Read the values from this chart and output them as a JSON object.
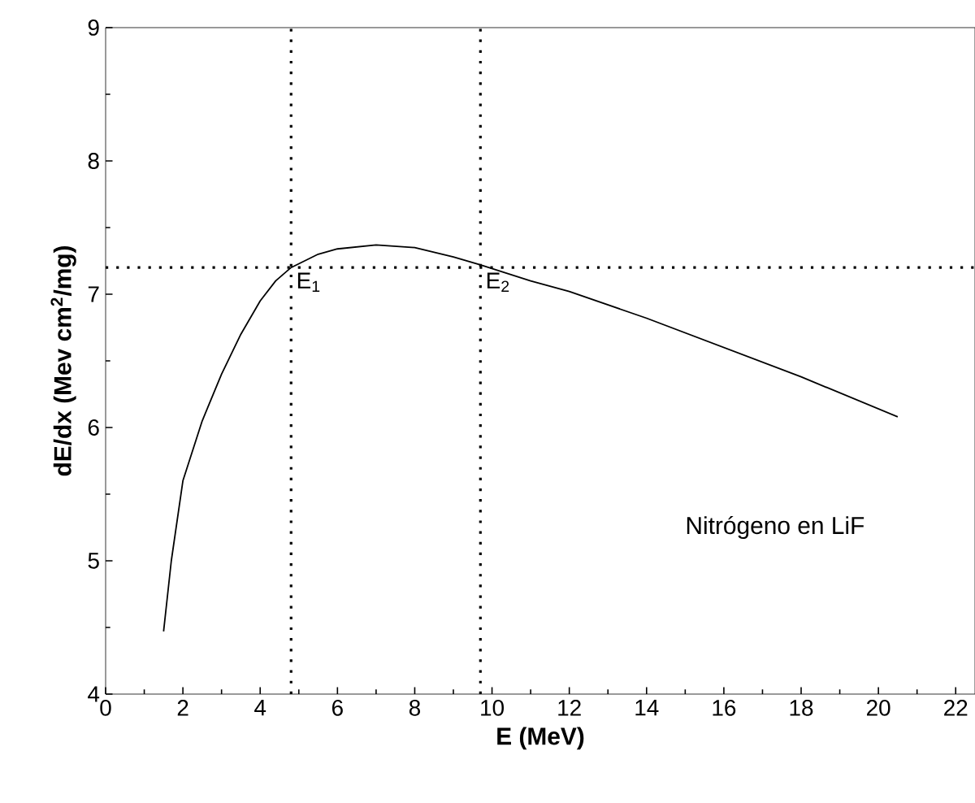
{
  "chart_data": {
    "type": "line",
    "xlabel": "E (MeV)",
    "ylabel": "dE/dx (Mev cm$^{2}$/mg)",
    "xlim": [
      0,
      22.5
    ],
    "ylim": [
      4,
      9
    ],
    "xticks": [
      0,
      2,
      4,
      6,
      8,
      10,
      12,
      14,
      16,
      18,
      20,
      22
    ],
    "yticks": [
      4,
      5,
      6,
      7,
      8,
      9
    ],
    "series": [
      {
        "color": "#000000",
        "x": [
          1.5,
          1.7,
          2,
          2.5,
          3,
          3.5,
          4,
          4.4,
          4.8,
          5.5,
          6,
          7,
          8,
          9,
          9.7,
          11,
          12,
          14,
          16,
          18,
          20.5
        ],
        "values": [
          4.47,
          5.0,
          5.6,
          6.05,
          6.4,
          6.7,
          6.95,
          7.1,
          7.2,
          7.3,
          7.34,
          7.37,
          7.35,
          7.28,
          7.22,
          7.1,
          7.02,
          6.82,
          6.6,
          6.38,
          6.08
        ]
      }
    ],
    "ref_lines": [
      {
        "axis": "x",
        "value": 4.8,
        "line_style": "dotted",
        "color": "#000000"
      },
      {
        "axis": "x",
        "value": 9.7,
        "line_style": "dotted",
        "color": "#000000"
      },
      {
        "axis": "y",
        "value": 7.2,
        "line_style": "dotted",
        "color": "#000000"
      }
    ],
    "annotations": [
      {
        "text": "E$_{1}$",
        "x": 4.8,
        "y": 7.2
      },
      {
        "text": "E$_{2}$",
        "x": 9.7,
        "y": 7.2
      },
      "Nitrógeno en LiF"
    ],
    "marker": "none",
    "line_style": "solid"
  }
}
